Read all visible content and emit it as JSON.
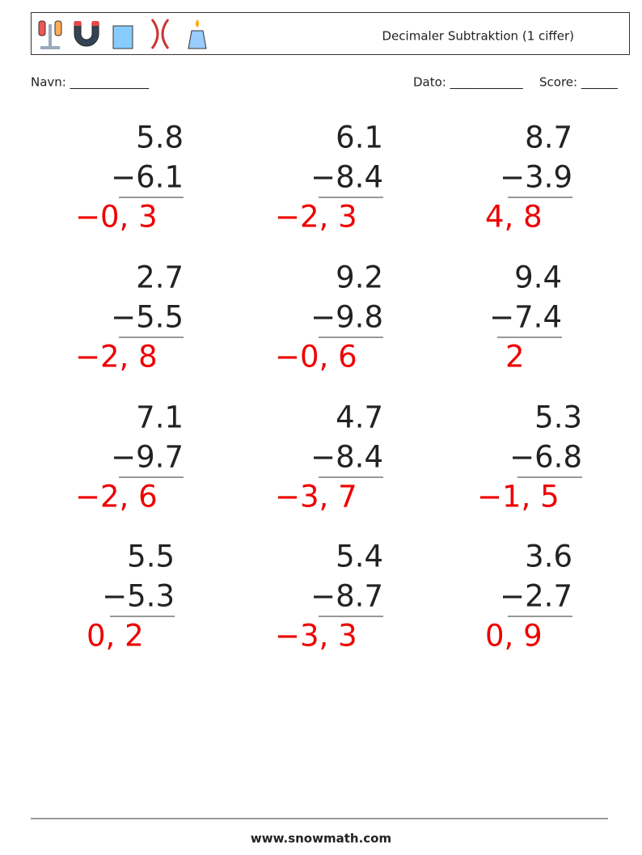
{
  "header": {
    "title": "Decimaler Subtraktion (1 ciffer)"
  },
  "fields": {
    "name": "Navn: _____________",
    "date": "Dato: ____________",
    "score": "Score: ______"
  },
  "problems": [
    {
      "top": "5.8",
      "bottom": "−6.1",
      "answer": "−0, 3"
    },
    {
      "top": "6.1",
      "bottom": "−8.4",
      "answer": "−2, 3"
    },
    {
      "top": "8.7",
      "bottom": "−3.9",
      "answer": "4, 8"
    },
    {
      "top": "2.7",
      "bottom": "−5.5",
      "answer": "−2, 8"
    },
    {
      "top": "9.2",
      "bottom": "−9.8",
      "answer": "−0, 6"
    },
    {
      "top": "9.4",
      "bottom": "−7.4",
      "answer": "2"
    },
    {
      "top": "7.1",
      "bottom": "−9.7",
      "answer": "−2, 6"
    },
    {
      "top": "4.7",
      "bottom": "−8.4",
      "answer": "−3, 7"
    },
    {
      "top": "5.3",
      "bottom": "−6.8",
      "answer": "−1, 5"
    },
    {
      "top": "5.5",
      "bottom": "−5.3",
      "answer": "0, 2"
    },
    {
      "top": "5.4",
      "bottom": "−8.7",
      "answer": "−3, 3"
    },
    {
      "top": "3.6",
      "bottom": "−2.7",
      "answer": "0, 9"
    }
  ],
  "footer": {
    "site": "www.snowmath.com"
  }
}
